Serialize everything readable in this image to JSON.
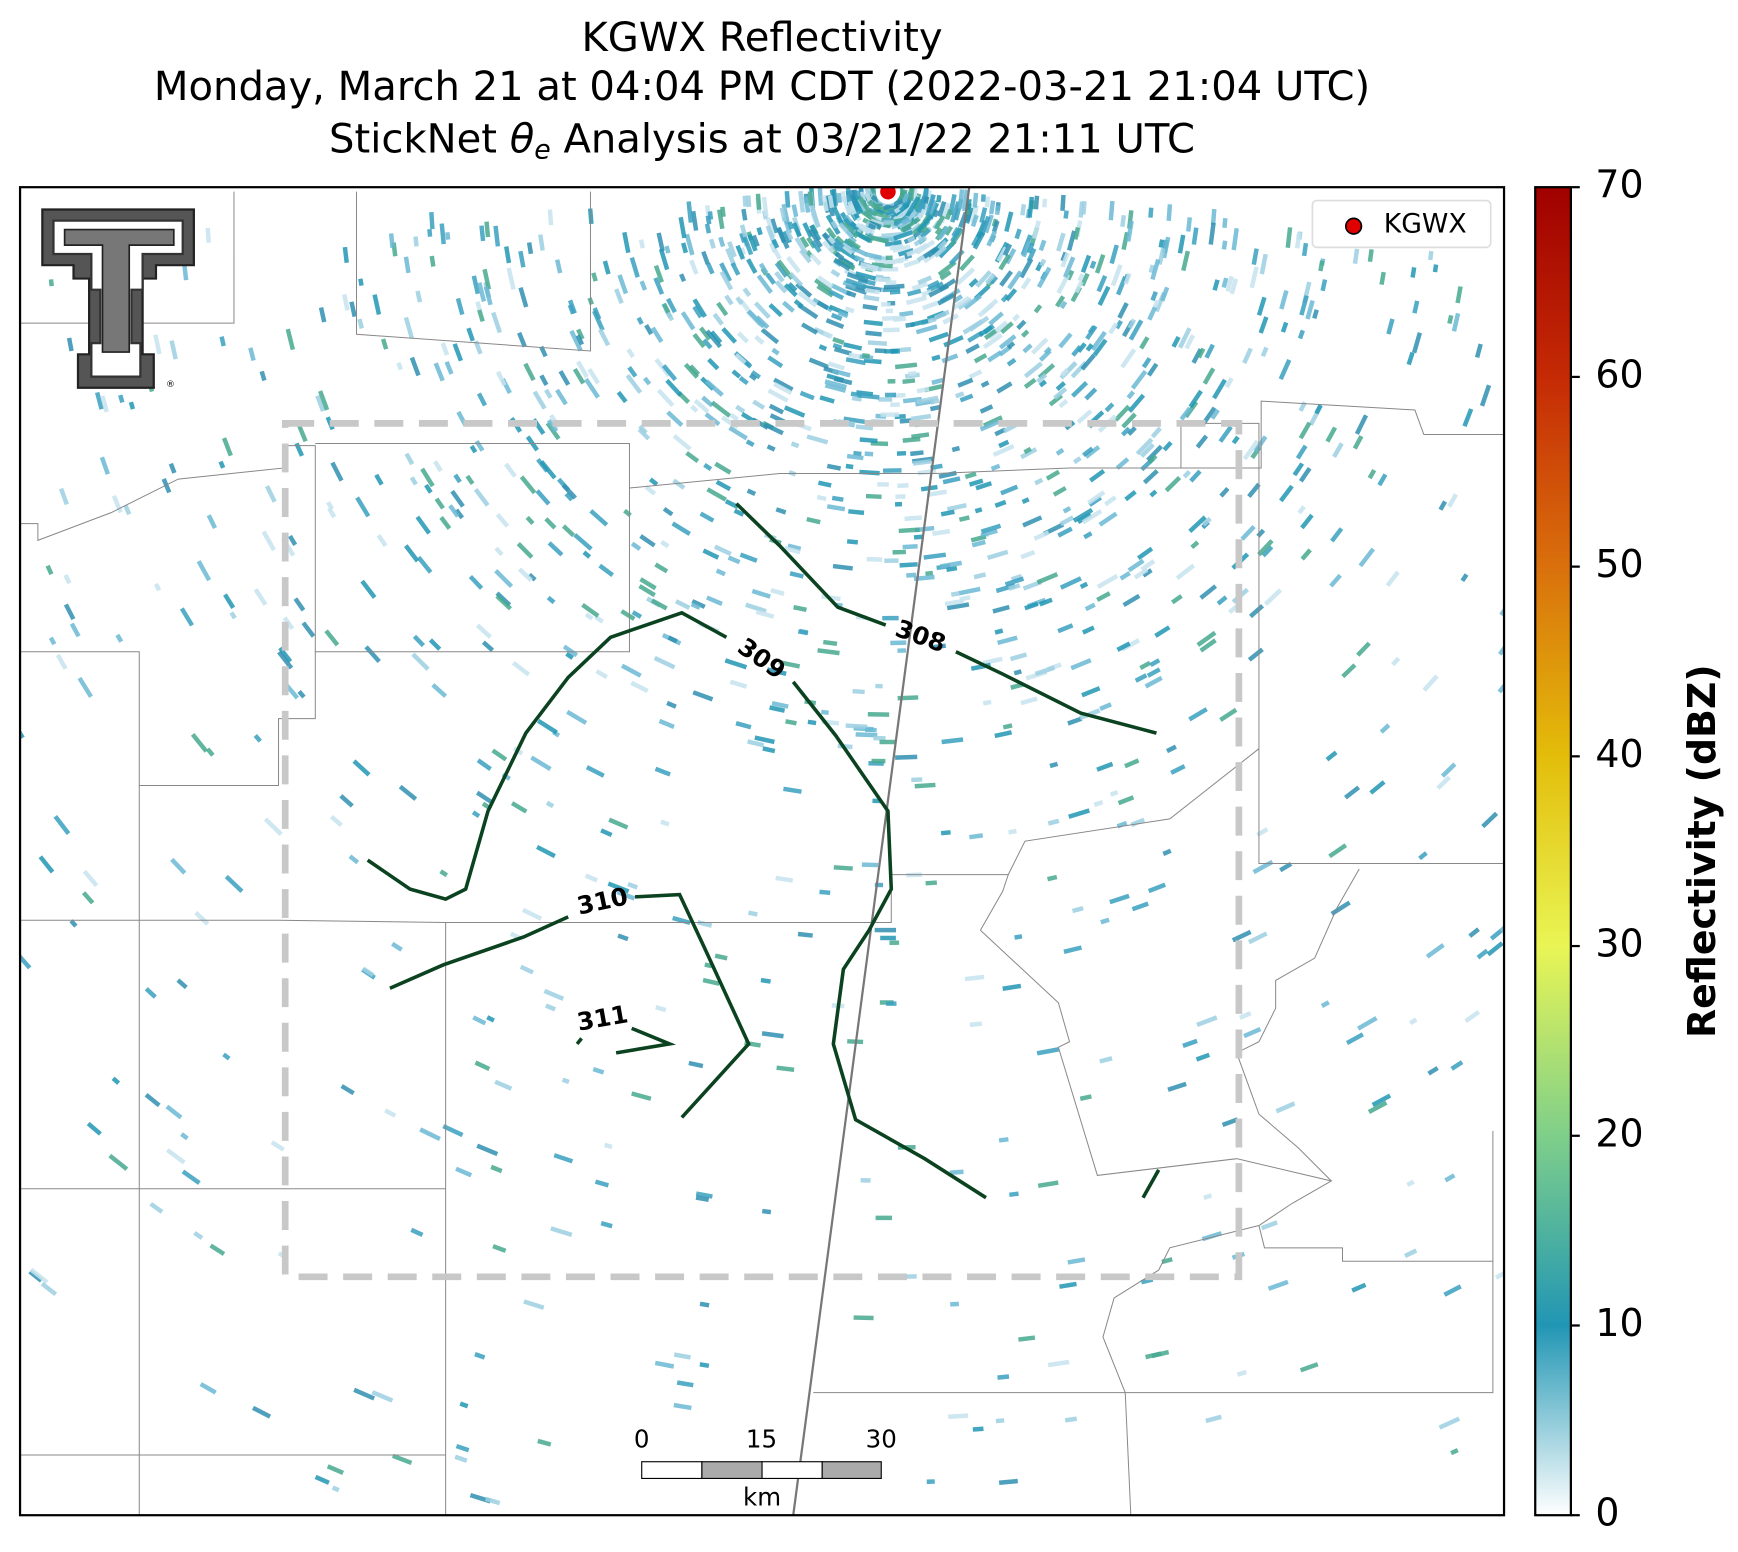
{
  "header": {
    "title": "KGWX Reflectivity",
    "subtitle": "Monday, March 21 at 04:04 PM CDT (2022-03-21 21:04 UTC)",
    "analysis": {
      "before": "StickNet ",
      "symbol": "θ",
      "subscript": "e",
      "after": " Analysis at 03/21/22 21:11 UTC"
    }
  },
  "legend": {
    "label": "KGWX",
    "color": "#e00000"
  },
  "contours": [
    {
      "level": 308
    },
    {
      "level": 309
    },
    {
      "level": 310
    },
    {
      "level": 311
    }
  ],
  "contour_color": "#0b4220",
  "scale_bar": {
    "ticks": [
      0,
      15,
      30
    ],
    "unit": "km"
  },
  "colorbar": {
    "label": "Reflectivity (dBZ)",
    "lim": [
      0,
      70
    ],
    "ticks": [
      0,
      10,
      20,
      30,
      40,
      50,
      60,
      70
    ],
    "stops": [
      {
        "value": 0,
        "color": "#ffffff"
      },
      {
        "value": 10,
        "color": "#2196b4"
      },
      {
        "value": 20,
        "color": "#7fcf8a"
      },
      {
        "value": 30,
        "color": "#e9f554"
      },
      {
        "value": 40,
        "color": "#e3bd0a"
      },
      {
        "value": 50,
        "color": "#d9700c"
      },
      {
        "value": 60,
        "color": "#c52a05"
      },
      {
        "value": 70,
        "color": "#a00000"
      }
    ]
  }
}
